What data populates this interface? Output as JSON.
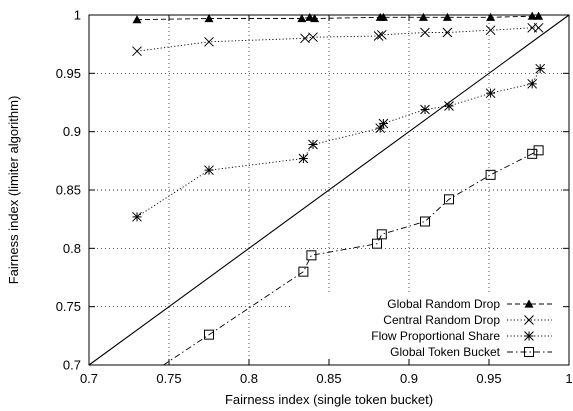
{
  "chart_data": {
    "type": "scatter",
    "title": "",
    "xlabel": "Fairness index (single token bucket)",
    "ylabel": "Fairness index (limiter algorithm)",
    "xlim": [
      0.7,
      1.0
    ],
    "ylim": [
      0.7,
      1.0
    ],
    "xticks": [
      "0.7",
      "0.75",
      "0.8",
      "0.85",
      "0.9",
      "0.95",
      "1"
    ],
    "yticks": [
      "0.7",
      "0.75",
      "0.8",
      "0.85",
      "0.9",
      "0.95",
      "1"
    ],
    "grid": true,
    "legend_position": "bottom-right",
    "reference_line": {
      "from": [
        0.7,
        0.7
      ],
      "to": [
        1.0,
        1.0
      ]
    },
    "series": [
      {
        "name": "Global Random Drop",
        "marker": "triangle",
        "line": "dashed",
        "x": [
          0.73,
          0.775,
          0.833,
          0.838,
          0.841,
          0.882,
          0.884,
          0.909,
          0.924,
          0.951,
          0.977,
          0.981
        ],
        "y": [
          0.996,
          0.997,
          0.997,
          0.998,
          0.997,
          0.998,
          0.998,
          0.998,
          0.998,
          0.998,
          0.999,
          0.999
        ]
      },
      {
        "name": "Central Random Drop",
        "marker": "x",
        "line": "dotted",
        "x": [
          0.73,
          0.775,
          0.835,
          0.84,
          0.881,
          0.883,
          0.91,
          0.924,
          0.951,
          0.977,
          0.981
        ],
        "y": [
          0.969,
          0.977,
          0.98,
          0.981,
          0.982,
          0.983,
          0.985,
          0.985,
          0.987,
          0.989,
          0.989
        ]
      },
      {
        "name": "Flow Proportional Share",
        "marker": "asterisk",
        "line": "dotted",
        "x": [
          0.73,
          0.775,
          0.834,
          0.84,
          0.882,
          0.884,
          0.91,
          0.925,
          0.951,
          0.977,
          0.982
        ],
        "y": [
          0.827,
          0.867,
          0.877,
          0.889,
          0.903,
          0.907,
          0.919,
          0.922,
          0.933,
          0.941,
          0.954
        ]
      },
      {
        "name": "Global Token Bucket",
        "marker": "square",
        "line": "dashdot",
        "x": [
          0.775,
          0.834,
          0.839,
          0.88,
          0.883,
          0.91,
          0.925,
          0.951,
          0.977,
          0.981
        ],
        "y": [
          0.726,
          0.78,
          0.794,
          0.804,
          0.812,
          0.823,
          0.842,
          0.863,
          0.881,
          0.884
        ]
      }
    ]
  }
}
